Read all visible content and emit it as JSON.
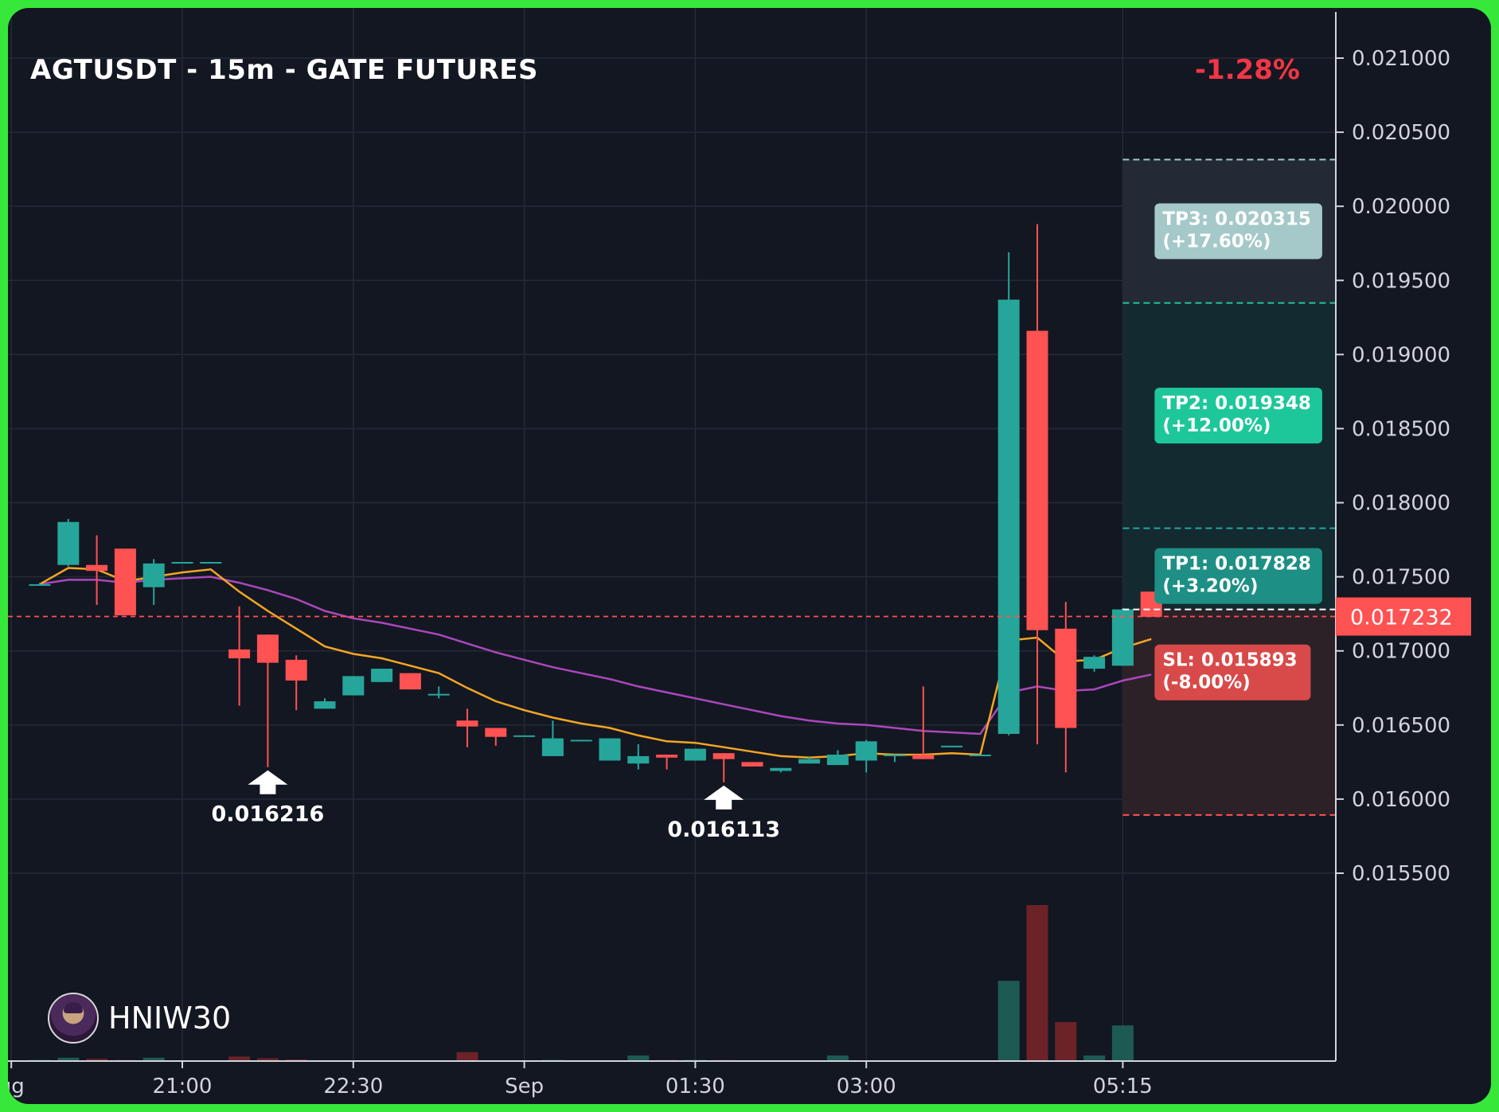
{
  "header": {
    "title": "AGTUSDT - 15m - GATE FUTURES",
    "change": "-1.28%"
  },
  "watermark": {
    "text": "HNIW30",
    "icon": "avatar-icon"
  },
  "colors": {
    "bull": "#26a69a",
    "bear": "#ff5252",
    "ema_fast": "#f5a623",
    "ema_slow": "#ab47bc",
    "background": "#131722",
    "frame": "#37e83a"
  },
  "chart_data": {
    "type": "candlestick",
    "title": "AGTUSDT - 15m - GATE FUTURES",
    "ylim": [
      0.0154,
      0.0213
    ],
    "y_ticks": [
      "0.021000",
      "0.020500",
      "0.020000",
      "0.019500",
      "0.019000",
      "0.018500",
      "0.018000",
      "0.017500",
      "0.017000",
      "0.016500",
      "0.016000",
      "0.015500"
    ],
    "x_ticks": [
      {
        "label": "ug",
        "bar": -1
      },
      {
        "label": "21:00",
        "bar": 5
      },
      {
        "label": "22:30",
        "bar": 11
      },
      {
        "label": "Sep",
        "bar": 17
      },
      {
        "label": "01:30",
        "bar": 23
      },
      {
        "label": "03:00",
        "bar": 29
      },
      {
        "label": "05:15",
        "bar": 38
      }
    ],
    "candles": [
      {
        "o": 0.01745,
        "h": 0.01746,
        "l": 0.01744,
        "c": 0.01745,
        "v": 0.1
      },
      {
        "o": 0.01758,
        "h": 0.01789,
        "l": 0.01757,
        "c": 0.01787,
        "v": 0.3
      },
      {
        "o": 0.01758,
        "h": 0.01778,
        "l": 0.01731,
        "c": 0.01754,
        "v": 0.2
      },
      {
        "o": 0.01769,
        "h": 0.01769,
        "l": 0.01724,
        "c": 0.01724,
        "v": 0.1
      },
      {
        "o": 0.01743,
        "h": 0.01762,
        "l": 0.01731,
        "c": 0.01759,
        "v": 0.3
      },
      {
        "o": 0.0176,
        "h": 0.0176,
        "l": 0.0176,
        "c": 0.0176,
        "v": 0.05
      },
      {
        "o": 0.0176,
        "h": 0.0176,
        "l": 0.0176,
        "c": 0.0176,
        "v": 0.05
      },
      {
        "o": 0.01701,
        "h": 0.0173,
        "l": 0.01663,
        "c": 0.01695,
        "v": 0.4
      },
      {
        "o": 0.01711,
        "h": 0.01711,
        "l": 0.016216,
        "c": 0.01692,
        "v": 0.25
      },
      {
        "o": 0.01694,
        "h": 0.01697,
        "l": 0.0166,
        "c": 0.0168,
        "v": 0.15
      },
      {
        "o": 0.01661,
        "h": 0.01668,
        "l": 0.01661,
        "c": 0.01666,
        "v": 0.05
      },
      {
        "o": 0.0167,
        "h": 0.01683,
        "l": 0.0167,
        "c": 0.01683,
        "v": 0.05
      },
      {
        "o": 0.01679,
        "h": 0.01688,
        "l": 0.01679,
        "c": 0.01688,
        "v": 0.05
      },
      {
        "o": 0.01685,
        "h": 0.01685,
        "l": 0.01674,
        "c": 0.01674,
        "v": 0.05
      },
      {
        "o": 0.01671,
        "h": 0.01676,
        "l": 0.01668,
        "c": 0.01671,
        "v": 0.05
      },
      {
        "o": 0.01653,
        "h": 0.01661,
        "l": 0.01635,
        "c": 0.01649,
        "v": 0.8
      },
      {
        "o": 0.01648,
        "h": 0.01648,
        "l": 0.01636,
        "c": 0.01642,
        "v": 0.05
      },
      {
        "o": 0.01643,
        "h": 0.01643,
        "l": 0.01643,
        "c": 0.01643,
        "v": 0.05
      },
      {
        "o": 0.01629,
        "h": 0.01653,
        "l": 0.01629,
        "c": 0.01641,
        "v": 0.1
      },
      {
        "o": 0.0164,
        "h": 0.0164,
        "l": 0.0164,
        "c": 0.0164,
        "v": 0.05
      },
      {
        "o": 0.01626,
        "h": 0.01641,
        "l": 0.01626,
        "c": 0.01641,
        "v": 0.05
      },
      {
        "o": 0.01624,
        "h": 0.01637,
        "l": 0.0162,
        "c": 0.01629,
        "v": 0.5
      },
      {
        "o": 0.0163,
        "h": 0.0163,
        "l": 0.0162,
        "c": 0.01628,
        "v": 0.1
      },
      {
        "o": 0.01626,
        "h": 0.01634,
        "l": 0.01626,
        "c": 0.01634,
        "v": 0.1
      },
      {
        "o": 0.01631,
        "h": 0.01631,
        "l": 0.016113,
        "c": 0.01627,
        "v": 0.1
      },
      {
        "o": 0.01625,
        "h": 0.01625,
        "l": 0.01622,
        "c": 0.01622,
        "v": 0.05
      },
      {
        "o": 0.01619,
        "h": 0.01621,
        "l": 0.01618,
        "c": 0.01621,
        "v": 0.05
      },
      {
        "o": 0.01624,
        "h": 0.01629,
        "l": 0.01624,
        "c": 0.01627,
        "v": 0.05
      },
      {
        "o": 0.01623,
        "h": 0.01633,
        "l": 0.01623,
        "c": 0.0163,
        "v": 0.5
      },
      {
        "o": 0.01626,
        "h": 0.0164,
        "l": 0.01618,
        "c": 0.01639,
        "v": 0.05
      },
      {
        "o": 0.0163,
        "h": 0.0163,
        "l": 0.01625,
        "c": 0.0163,
        "v": 0.05
      },
      {
        "o": 0.0163,
        "h": 0.01676,
        "l": 0.01627,
        "c": 0.01627,
        "v": 0.05
      },
      {
        "o": 0.01636,
        "h": 0.01636,
        "l": 0.01636,
        "c": 0.01636,
        "v": 0.05
      },
      {
        "o": 0.01629,
        "h": 0.0163,
        "l": 0.01629,
        "c": 0.0163,
        "v": 0.05
      },
      {
        "o": 0.01644,
        "h": 0.01969,
        "l": 0.01643,
        "c": 0.01937,
        "v": 7.2
      },
      {
        "o": 0.01916,
        "h": 0.01988,
        "l": 0.01637,
        "c": 0.01714,
        "v": 14.0
      },
      {
        "o": 0.01715,
        "h": 0.01733,
        "l": 0.01618,
        "c": 0.01648,
        "v": 3.5
      },
      {
        "o": 0.01688,
        "h": 0.01697,
        "l": 0.01686,
        "c": 0.01696,
        "v": 0.5
      },
      {
        "o": 0.0169,
        "h": 0.01729,
        "l": 0.0169,
        "c": 0.01728,
        "v": 3.2
      },
      {
        "o": 0.0174,
        "h": 0.0174,
        "l": 0.01723,
        "c": 0.01723,
        "v": 0
      }
    ],
    "ema_fast": [
      0.01745,
      0.01756,
      0.01755,
      0.01747,
      0.0175,
      0.01753,
      0.01755,
      0.0174,
      0.01727,
      0.01715,
      0.01703,
      0.01698,
      0.01695,
      0.0169,
      0.01685,
      0.01675,
      0.01666,
      0.0166,
      0.01655,
      0.01651,
      0.01648,
      0.01643,
      0.01639,
      0.01638,
      0.01635,
      0.01632,
      0.01629,
      0.01628,
      0.01629,
      0.01631,
      0.0163,
      0.0163,
      0.01631,
      0.0163,
      0.01707,
      0.01709,
      0.01693,
      0.01694,
      0.01702,
      0.01708
    ],
    "ema_slow": [
      0.01745,
      0.01748,
      0.01748,
      0.01746,
      0.01748,
      0.01749,
      0.0175,
      0.01746,
      0.01741,
      0.01735,
      0.01727,
      0.01722,
      0.01719,
      0.01715,
      0.01711,
      0.01705,
      0.01699,
      0.01694,
      0.01689,
      0.01685,
      0.01681,
      0.01676,
      0.01672,
      0.01668,
      0.01664,
      0.0166,
      0.01656,
      0.01653,
      0.01651,
      0.0165,
      0.01648,
      0.01646,
      0.01645,
      0.01644,
      0.01672,
      0.01676,
      0.01673,
      0.01674,
      0.0168,
      0.01684
    ],
    "current_price": 0.017232,
    "current_price_label": "0.017232",
    "low_markers": [
      {
        "bar": 8,
        "price": 0.016216,
        "label": "0.016216"
      },
      {
        "bar": 24,
        "price": 0.016113,
        "label": "0.016113"
      }
    ],
    "targets": [
      {
        "name": "TP3",
        "price": 0.020315,
        "label": "TP3: 0.020315\n(+17.60%)",
        "zone_top": 0.020315,
        "zone_bottom": 0.019348,
        "fill": "#242a35",
        "box": "#a5c8c8",
        "line": "#a5c8c8",
        "text": "#ffffff"
      },
      {
        "name": "TP2",
        "price": 0.019348,
        "label": "TP2: 0.019348\n(+12.00%)",
        "zone_top": 0.019348,
        "zone_bottom": 0.017828,
        "fill": "#132a30",
        "box": "#1ec79a",
        "line": "#1ec79a",
        "text": "#ffffff"
      },
      {
        "name": "TP1",
        "price": 0.017828,
        "label": "TP1: 0.017828\n(+3.20%)",
        "zone_top": 0.017828,
        "zone_bottom": 0.01728,
        "fill": "#132a30",
        "box": "#1e8f84",
        "line": "#26a69a",
        "text": "#ffffff"
      },
      {
        "name": "SL",
        "price": 0.015893,
        "label": "SL: 0.015893\n(-8.00%)",
        "zone_top": 0.01728,
        "zone_bottom": 0.015893,
        "fill": "#2d2128",
        "box": "#d84a4a",
        "line": "#ff5252",
        "text": "#ffffff"
      }
    ],
    "entry_line": 0.01728
  }
}
